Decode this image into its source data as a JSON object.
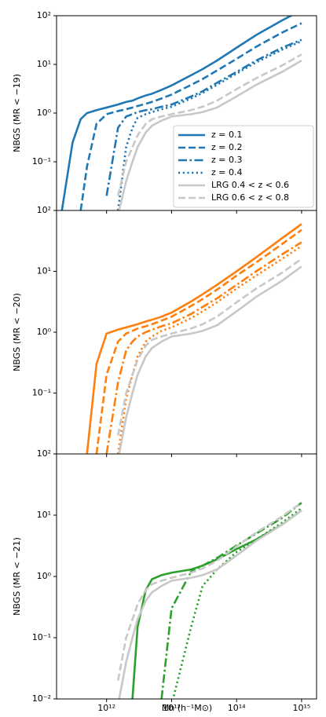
{
  "chart_data": [
    {
      "type": "line",
      "ylabel": "NBGS (MR < −19)",
      "legend": "lower right",
      "yscale": "log",
      "ylim": [
        0.01,
        100
      ],
      "yticks": [
        {
          "value": 0.1,
          "label": "10⁻¹"
        },
        {
          "value": 1,
          "label": "10⁰"
        },
        {
          "value": 10,
          "label": "10¹"
        },
        {
          "value": 100,
          "label": "10²"
        }
      ],
      "x": [
        200000000000.0,
        300000000000.0,
        400000000000.0,
        500000000000.0,
        700000000000.0,
        1000000000000.0,
        1500000000000.0,
        2000000000000.0,
        2500000000000.0,
        3000000000000.0,
        4000000000000.0,
        5000000000000.0,
        7000000000000.0,
        10000000000000.0,
        20000000000000.0,
        30000000000000.0,
        50000000000000.0,
        100000000000000.0,
        200000000000000.0,
        500000000000000.0,
        1000000000000000.0
      ],
      "series": [
        {
          "name": "z = 0.1",
          "color": "#1f77b4",
          "style": "solid",
          "values": [
            0.008,
            0.25,
            0.75,
            1.0,
            1.15,
            1.3,
            1.5,
            1.7,
            1.8,
            2.0,
            2.3,
            2.5,
            3.0,
            3.7,
            6,
            8,
            12,
            22,
            40,
            80,
            130
          ]
        },
        {
          "name": "z = 0.2",
          "color": "#1f77b4",
          "style": "dashed",
          "values": [
            null,
            null,
            0.01,
            0.08,
            0.6,
            0.95,
            1.1,
            1.2,
            1.3,
            1.4,
            1.55,
            1.7,
            2.0,
            2.4,
            3.8,
            5,
            7.5,
            13,
            23,
            45,
            70
          ]
        },
        {
          "name": "z = 0.3",
          "color": "#1f77b4",
          "style": "dashdot",
          "values": [
            null,
            null,
            null,
            null,
            null,
            0.02,
            0.5,
            0.85,
            0.95,
            1.05,
            1.15,
            1.2,
            1.35,
            1.5,
            2.2,
            2.8,
            4.2,
            7,
            12,
            22,
            32
          ]
        },
        {
          "name": "z = 0.4",
          "color": "#1f77b4",
          "style": "dotted",
          "values": [
            null,
            null,
            null,
            null,
            null,
            null,
            0.01,
            0.2,
            0.5,
            0.8,
            0.95,
            1.05,
            1.2,
            1.35,
            2,
            2.6,
            3.8,
            6.5,
            11,
            20,
            30
          ]
        },
        {
          "name": "LRG 0.4 < z < 0.6",
          "color": "#c8c8c8",
          "style": "solid",
          "values": [
            null,
            null,
            null,
            null,
            null,
            null,
            0.008,
            0.04,
            0.1,
            0.2,
            0.4,
            0.55,
            0.7,
            0.85,
            0.95,
            1.05,
            1.3,
            2.2,
            3.8,
            7,
            12
          ]
        },
        {
          "name": "LRG 0.6 < z < 0.8",
          "color": "#c8c8c8",
          "style": "dashed",
          "values": [
            null,
            null,
            null,
            null,
            null,
            null,
            0.02,
            0.1,
            0.2,
            0.35,
            0.6,
            0.75,
            0.85,
            0.95,
            1.15,
            1.35,
            1.8,
            3.1,
            5.2,
            9.5,
            16
          ]
        }
      ]
    },
    {
      "type": "line",
      "ylabel": "NBGS (MR < −20)",
      "yscale": "log",
      "ylim": [
        0.01,
        100
      ],
      "yticks": [
        {
          "value": 0.1,
          "label": "10⁻¹"
        },
        {
          "value": 1,
          "label": "10⁰"
        },
        {
          "value": 10,
          "label": "10¹"
        },
        {
          "value": 100,
          "label": "10²"
        }
      ],
      "x": [
        200000000000.0,
        300000000000.0,
        400000000000.0,
        500000000000.0,
        700000000000.0,
        1000000000000.0,
        1500000000000.0,
        2000000000000.0,
        2500000000000.0,
        3000000000000.0,
        4000000000000.0,
        5000000000000.0,
        7000000000000.0,
        10000000000000.0,
        20000000000000.0,
        30000000000000.0,
        50000000000000.0,
        100000000000000.0,
        200000000000000.0,
        500000000000000.0,
        1000000000000000.0
      ],
      "series": [
        {
          "color": "#ff7f0e",
          "style": "solid",
          "values": [
            null,
            null,
            null,
            0.01,
            0.3,
            0.95,
            1.1,
            1.2,
            1.28,
            1.35,
            1.5,
            1.6,
            1.8,
            2.1,
            3.2,
            4.2,
            6,
            10,
            17,
            35,
            60
          ]
        },
        {
          "color": "#ff7f0e",
          "style": "dashed",
          "values": [
            null,
            null,
            null,
            null,
            0.01,
            0.2,
            0.7,
            0.95,
            1.05,
            1.15,
            1.25,
            1.35,
            1.55,
            1.8,
            2.7,
            3.5,
            5,
            8.5,
            14,
            28,
            48
          ]
        },
        {
          "color": "#ff7f0e",
          "style": "dashdot",
          "values": [
            null,
            null,
            null,
            null,
            null,
            0.01,
            0.15,
            0.5,
            0.7,
            0.85,
            1.0,
            1.1,
            1.25,
            1.4,
            2,
            2.6,
            3.6,
            6,
            10,
            19,
            30
          ]
        },
        {
          "color": "#ff7f0e",
          "style": "dotted",
          "values": [
            null,
            null,
            null,
            null,
            null,
            null,
            0.01,
            0.08,
            0.2,
            0.4,
            0.7,
            0.85,
            1.05,
            1.2,
            1.7,
            2.2,
            3.1,
            5.2,
            8.5,
            16,
            26
          ]
        },
        {
          "color": "#c8c8c8",
          "style": "solid",
          "values": [
            null,
            null,
            null,
            null,
            null,
            null,
            0.008,
            0.04,
            0.1,
            0.2,
            0.4,
            0.55,
            0.7,
            0.85,
            0.95,
            1.05,
            1.3,
            2.2,
            3.8,
            7,
            12
          ]
        },
        {
          "color": "#c8c8c8",
          "style": "dashed",
          "values": [
            null,
            null,
            null,
            null,
            null,
            null,
            0.02,
            0.1,
            0.2,
            0.35,
            0.6,
            0.75,
            0.85,
            0.95,
            1.15,
            1.35,
            1.8,
            3.1,
            5.2,
            9.5,
            16
          ]
        }
      ]
    },
    {
      "type": "line",
      "ylabel": "NBGS (MR < −21)",
      "xlabel": "Mh (h⁻¹M⊙)",
      "xscale": "log",
      "yscale": "log",
      "ylim": [
        0.01,
        100
      ],
      "xlim": [
        170000000000.0,
        1700000000000000.0
      ],
      "xticks": [
        {
          "value": 1000000000000.0,
          "label": "10¹²"
        },
        {
          "value": 10000000000000.0,
          "label": "10¹³"
        },
        {
          "value": 100000000000000.0,
          "label": "10¹⁴"
        },
        {
          "value": 1000000000000000.0,
          "label": "10¹⁵"
        }
      ],
      "yticks": [
        {
          "value": 0.01,
          "label": "10⁻²"
        },
        {
          "value": 0.1,
          "label": "10⁻¹"
        },
        {
          "value": 1,
          "label": "10⁰"
        },
        {
          "value": 10,
          "label": "10¹"
        },
        {
          "value": 100,
          "label": "10²"
        }
      ],
      "x": [
        200000000000.0,
        300000000000.0,
        400000000000.0,
        500000000000.0,
        700000000000.0,
        1000000000000.0,
        1500000000000.0,
        2000000000000.0,
        2500000000000.0,
        3000000000000.0,
        4000000000000.0,
        5000000000000.0,
        7000000000000.0,
        10000000000000.0,
        20000000000000.0,
        30000000000000.0,
        50000000000000.0,
        100000000000000.0,
        200000000000000.0,
        500000000000000.0,
        1000000000000000.0
      ],
      "series": [
        {
          "color": "#2ca02c",
          "style": "solid",
          "values": [
            null,
            null,
            null,
            null,
            null,
            null,
            null,
            null,
            0.01,
            0.15,
            0.6,
            0.9,
            1.05,
            1.15,
            1.3,
            1.5,
            1.9,
            2.8,
            4,
            7,
            12
          ]
        },
        {
          "color": "#2ca02c",
          "style": "dashdot",
          "values": [
            null,
            null,
            null,
            null,
            null,
            null,
            null,
            null,
            null,
            null,
            null,
            null,
            0.01,
            0.3,
            1.2,
            1.5,
            2,
            3.2,
            5,
            9,
            16
          ]
        },
        {
          "color": "#2ca02c",
          "style": "dotted",
          "values": [
            null,
            null,
            null,
            null,
            null,
            null,
            null,
            null,
            null,
            null,
            null,
            null,
            null,
            0.008,
            0.15,
            0.7,
            1.3,
            2.5,
            4,
            7.5,
            13
          ]
        },
        {
          "color": "#c8c8c8",
          "style": "solid",
          "values": [
            null,
            null,
            null,
            null,
            null,
            null,
            0.008,
            0.04,
            0.1,
            0.2,
            0.4,
            0.55,
            0.7,
            0.85,
            0.95,
            1.05,
            1.3,
            2.2,
            3.8,
            7,
            12
          ]
        },
        {
          "color": "#c8c8c8",
          "style": "dashed",
          "values": [
            null,
            null,
            null,
            null,
            null,
            null,
            0.02,
            0.1,
            0.2,
            0.35,
            0.6,
            0.75,
            0.85,
            0.95,
            1.15,
            1.35,
            1.8,
            3.1,
            5.2,
            9.5,
            16
          ]
        }
      ]
    }
  ]
}
